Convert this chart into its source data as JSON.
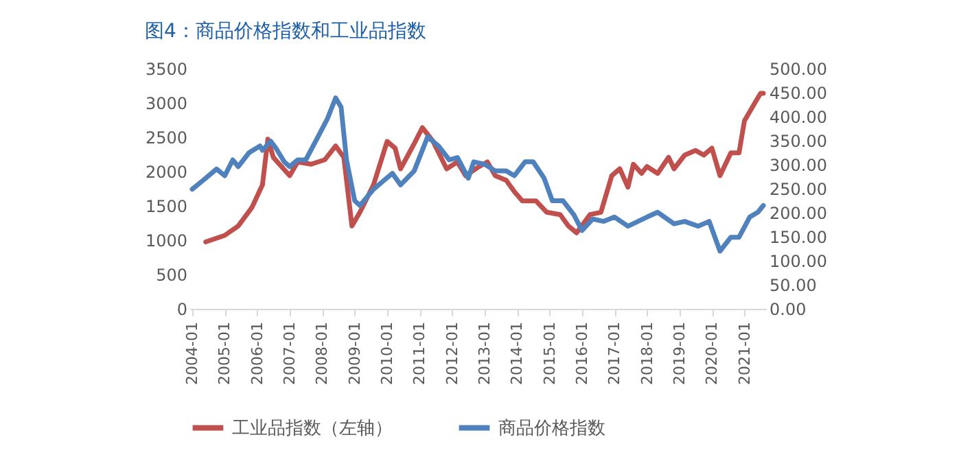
{
  "chart_data": {
    "type": "line",
    "title": "图4：商品价格指数和工业品指数",
    "legend": "bottom",
    "grid": false,
    "marker": "none",
    "line_style": "solid",
    "xlim": [
      "2003-12",
      "2021-09"
    ],
    "xticks": [
      "2004-01",
      "2005-01",
      "2006-01",
      "2007-01",
      "2008-01",
      "2009-01",
      "2010-01",
      "2011-01",
      "2012-01",
      "2013-01",
      "2014-01",
      "2015-01",
      "2016-01",
      "2017-01",
      "2018-01",
      "2019-01",
      "2020-01",
      "2021-01"
    ],
    "ylim": [
      0,
      3500
    ],
    "yticks": [
      0,
      500,
      1000,
      1500,
      2000,
      2500,
      3000,
      3500
    ],
    "y2lim": [
      0,
      500
    ],
    "y2ticks": [
      {
        "value": 0,
        "label": "0.00"
      },
      {
        "value": 50,
        "label": "50.00"
      },
      {
        "value": 100,
        "label": "100.00"
      },
      {
        "value": 150,
        "label": "150.00"
      },
      {
        "value": 200,
        "label": "200.00"
      },
      {
        "value": 250,
        "label": "250.00"
      },
      {
        "value": 300,
        "label": "300.00"
      },
      {
        "value": 350,
        "label": "350.00"
      },
      {
        "value": 400,
        "label": "400.00"
      },
      {
        "value": 450,
        "label": "450.00"
      },
      {
        "value": 500,
        "label": "500.00"
      }
    ],
    "series": [
      {
        "name": "工业品指数（左轴）",
        "color": "#c0504d",
        "axis": "y",
        "x": [
          "2004-06",
          "2005-01",
          "2005-06",
          "2005-11",
          "2006-03",
          "2006-05",
          "2006-07",
          "2007-01",
          "2007-04",
          "2007-09",
          "2008-02",
          "2008-06",
          "2008-09",
          "2008-12",
          "2009-03",
          "2009-08",
          "2010-01",
          "2010-04",
          "2010-06",
          "2010-11",
          "2011-02",
          "2011-06",
          "2011-11",
          "2012-03",
          "2012-06",
          "2012-11",
          "2013-02",
          "2013-05",
          "2013-09",
          "2013-12",
          "2014-03",
          "2014-08",
          "2014-12",
          "2015-05",
          "2015-08",
          "2015-11",
          "2016-04",
          "2016-08",
          "2016-12",
          "2017-03",
          "2017-06",
          "2017-08",
          "2017-11",
          "2018-01",
          "2018-05",
          "2018-09",
          "2018-11",
          "2019-03",
          "2019-07",
          "2019-10",
          "2020-01",
          "2020-04",
          "2020-08",
          "2020-11",
          "2021-01",
          "2021-05",
          "2021-07",
          "2021-08"
        ],
        "values": [
          975,
          1070,
          1207,
          1473,
          1807,
          2473,
          2207,
          1940,
          2140,
          2107,
          2173,
          2373,
          2207,
          1207,
          1407,
          1807,
          2440,
          2340,
          2040,
          2407,
          2640,
          2440,
          2040,
          2140,
          1940,
          2073,
          2140,
          1940,
          1873,
          1707,
          1573,
          1573,
          1407,
          1373,
          1207,
          1107,
          1373,
          1407,
          1940,
          2040,
          1773,
          2107,
          1973,
          2073,
          1973,
          2207,
          2040,
          2240,
          2307,
          2240,
          2340,
          1940,
          2273,
          2273,
          2740,
          3007,
          3140,
          3140
        ]
      },
      {
        "name": "商品价格指数",
        "color": "#4f81bd",
        "axis": "y2",
        "x": [
          "2004-01",
          "2004-06",
          "2004-10",
          "2005-01",
          "2005-04",
          "2005-06",
          "2005-10",
          "2006-02",
          "2006-03",
          "2006-06",
          "2006-08",
          "2006-11",
          "2007-01",
          "2007-04",
          "2007-07",
          "2007-11",
          "2008-03",
          "2008-06",
          "2008-08",
          "2008-10",
          "2009-01",
          "2009-03",
          "2009-08",
          "2009-12",
          "2010-03",
          "2010-06",
          "2010-11",
          "2011-04",
          "2011-08",
          "2011-12",
          "2012-03",
          "2012-07",
          "2012-09",
          "2013-01",
          "2013-05",
          "2013-09",
          "2013-12",
          "2014-04",
          "2014-07",
          "2014-11",
          "2015-02",
          "2015-06",
          "2015-10",
          "2016-01",
          "2016-05",
          "2016-09",
          "2017-01",
          "2017-06",
          "2018-01",
          "2018-05",
          "2018-11",
          "2019-03",
          "2019-08",
          "2019-12",
          "2020-04",
          "2020-08",
          "2020-11",
          "2021-03",
          "2021-06",
          "2021-08"
        ],
        "values": [
          249,
          272,
          291,
          277,
          310,
          296,
          325,
          339,
          330,
          349,
          334,
          306,
          296,
          310,
          310,
          353,
          396,
          439,
          420,
          310,
          225,
          215,
          249,
          268,
          282,
          258,
          287,
          358,
          339,
          310,
          315,
          272,
          306,
          301,
          287,
          287,
          277,
          306,
          306,
          272,
          225,
          225,
          196,
          163,
          187,
          182,
          191,
          172,
          191,
          201,
          177,
          182,
          172,
          182,
          120,
          149,
          149,
          191,
          201,
          215
        ]
      }
    ]
  }
}
